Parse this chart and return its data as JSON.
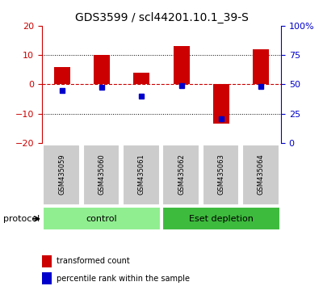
{
  "title": "GDS3599 / scl44201.10.1_39-S",
  "samples": [
    "GSM435059",
    "GSM435060",
    "GSM435061",
    "GSM435062",
    "GSM435063",
    "GSM435064"
  ],
  "red_bars": [
    6.0,
    10.0,
    4.0,
    13.0,
    -13.5,
    12.0
  ],
  "blue_dots": [
    45.0,
    47.5,
    40.0,
    49.0,
    21.0,
    48.0
  ],
  "ylim_left": [
    -20,
    20
  ],
  "ylim_right": [
    0,
    100
  ],
  "yticks_left": [
    -20,
    -10,
    0,
    10,
    20
  ],
  "yticks_right": [
    0,
    25,
    50,
    75,
    100
  ],
  "ytick_labels_right": [
    "0",
    "25",
    "50",
    "75",
    "100%"
  ],
  "groups": [
    {
      "label": "control",
      "samples": [
        0,
        1,
        2
      ],
      "color": "#90ee90"
    },
    {
      "label": "Eset depletion",
      "samples": [
        3,
        4,
        5
      ],
      "color": "#3dbb3d"
    }
  ],
  "group_row_label": "protocol",
  "bar_color": "#cc0000",
  "dot_color": "#0000cc",
  "zero_line_color": "#cc0000",
  "grid_color": "#000000",
  "bg_color": "#ffffff",
  "plot_bg": "#ffffff",
  "tick_area_bg": "#cccccc",
  "legend_red_label": "transformed count",
  "legend_blue_label": "percentile rank within the sample",
  "title_fontsize": 10,
  "axis_fontsize": 8,
  "label_fontsize": 8,
  "sample_fontsize": 6,
  "group_fontsize": 8
}
